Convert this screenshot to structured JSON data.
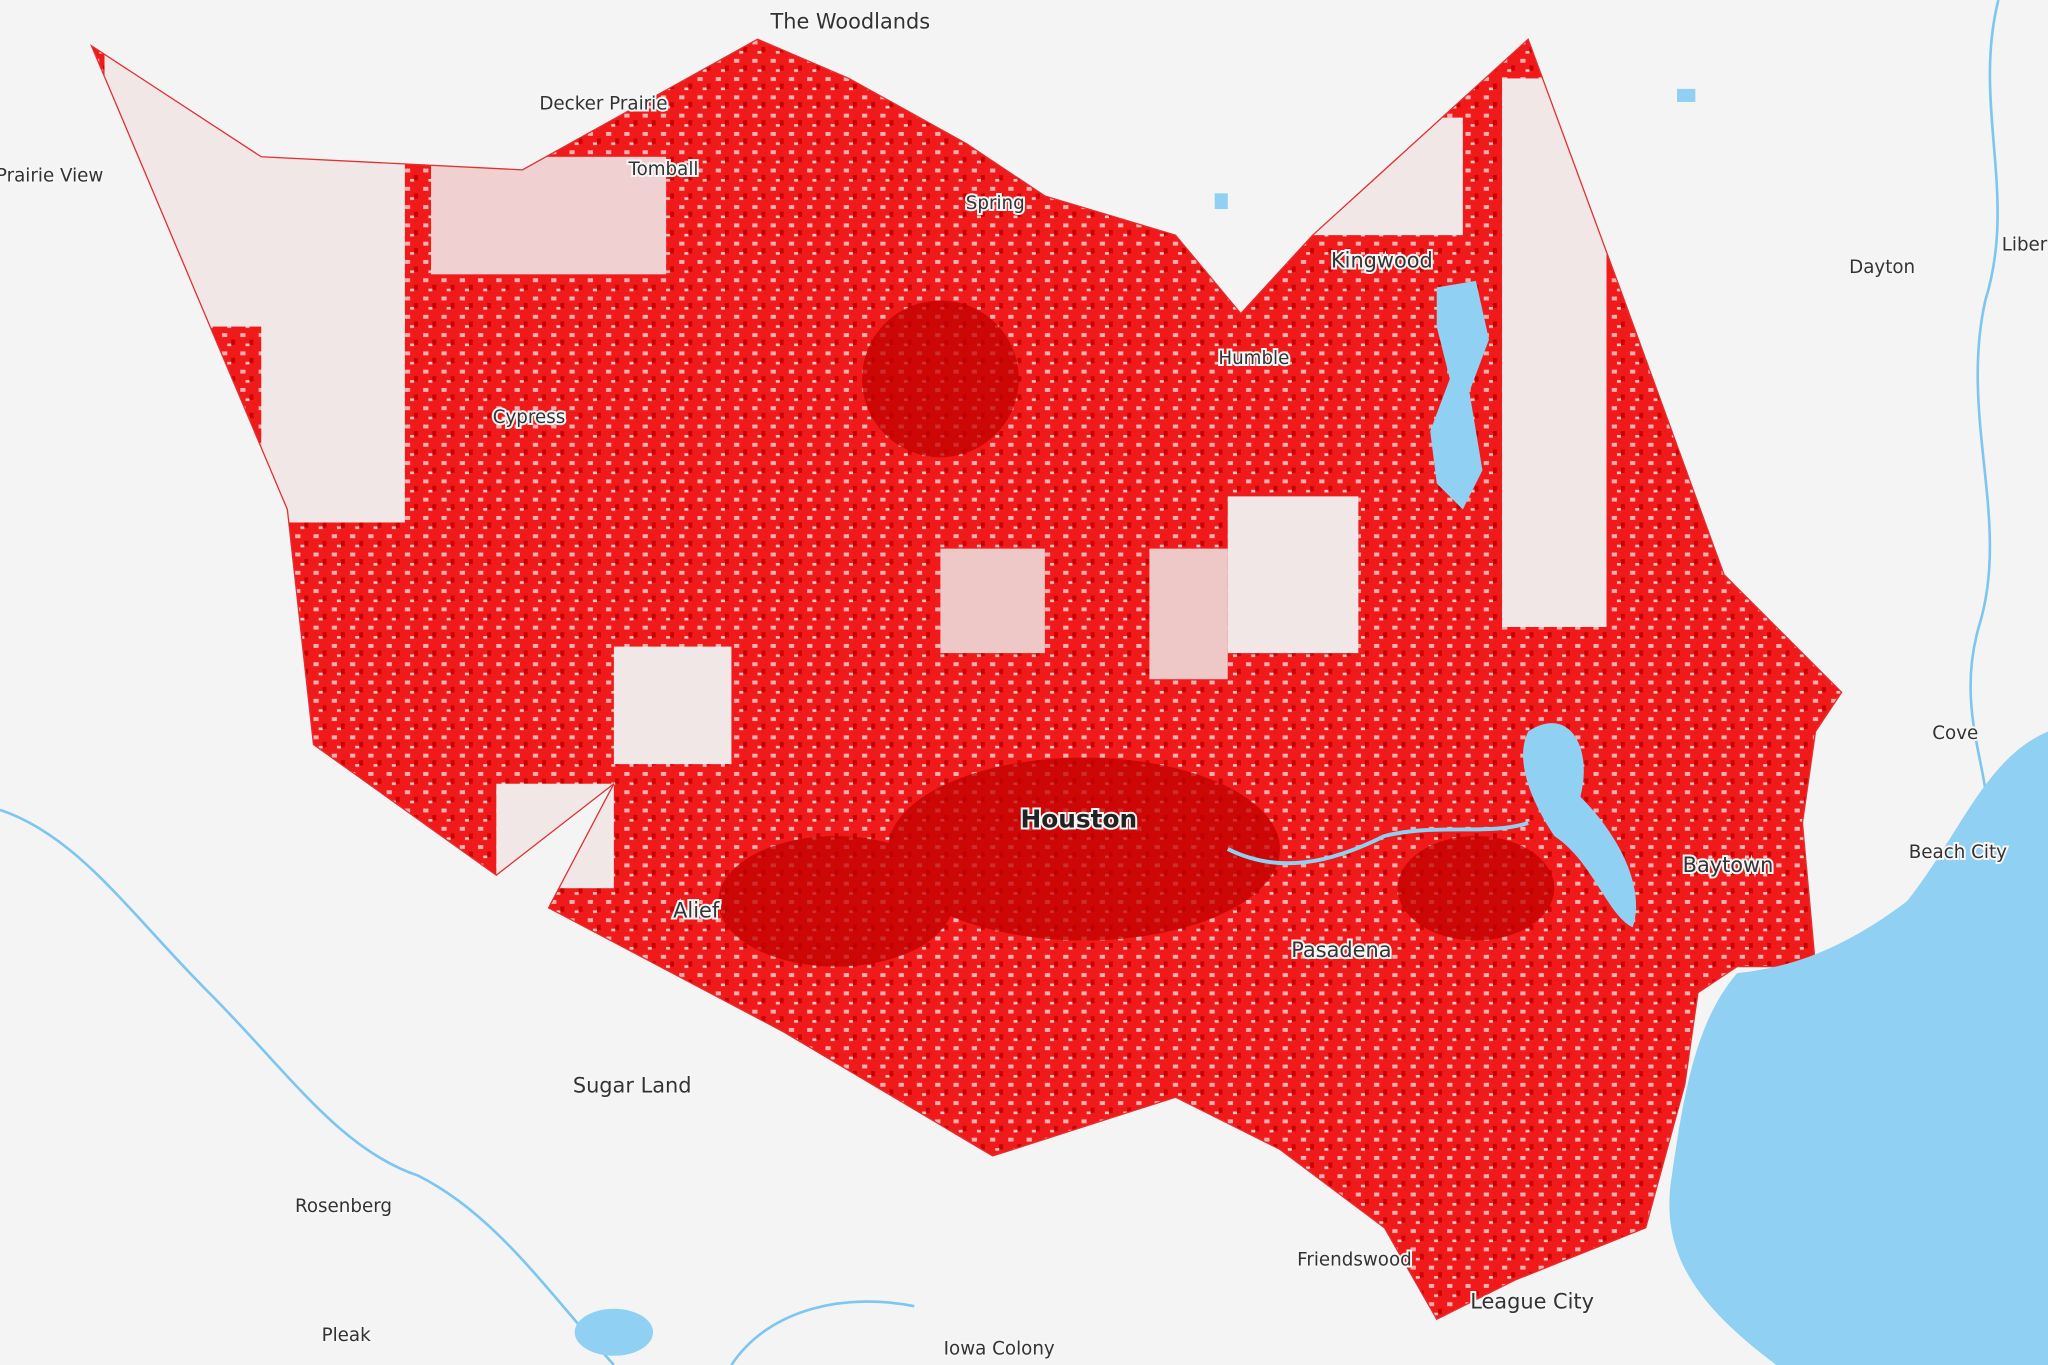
{
  "map": {
    "places": [
      {
        "label": "The Woodlands"
      },
      {
        "label": "Decker Prairie"
      },
      {
        "label": "Prairie View"
      },
      {
        "label": "Tomball"
      },
      {
        "label": "Spring"
      },
      {
        "label": "Kingwood"
      },
      {
        "label": "Dayton"
      },
      {
        "label": "Liber"
      },
      {
        "label": "Humble"
      },
      {
        "label": "Cypress"
      },
      {
        "label": "Cove"
      },
      {
        "label": "Houston"
      },
      {
        "label": "Baytown"
      },
      {
        "label": "Beach City"
      },
      {
        "label": "Alief"
      },
      {
        "label": "Pasadena"
      },
      {
        "label": "Sugar Land"
      },
      {
        "label": "Rosenberg"
      },
      {
        "label": "Friendswood"
      },
      {
        "label": "League City"
      },
      {
        "label": "Pleak"
      },
      {
        "label": "Iowa Colony"
      }
    ]
  }
}
